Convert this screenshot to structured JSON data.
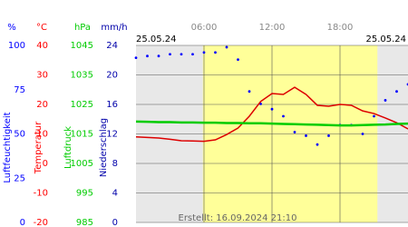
{
  "chart_data": {
    "type": "line",
    "dates": [
      "25.05.24",
      "25.05.24"
    ],
    "footer": "Erstellt: 16.09.2024 21:10",
    "xlim": [
      0,
      24
    ],
    "xticks": [
      {
        "value": 6,
        "label": "06:00"
      },
      {
        "value": 12,
        "label": "12:00"
      },
      {
        "value": 18,
        "label": "18:00"
      }
    ],
    "daylight": [
      5.9,
      21.3
    ],
    "daylight_color": "#ffff99",
    "grid": true,
    "axes": [
      {
        "unit": "%",
        "label": "Luftfeuchtigkeit",
        "color": "#0000ff",
        "lim": [
          0,
          100
        ],
        "ticks": [
          0,
          25,
          50,
          75,
          100
        ]
      },
      {
        "unit": "°C",
        "label": "Temperatur",
        "color": "#ff0000",
        "lim": [
          -20,
          40
        ],
        "ticks": [
          -20,
          -10,
          0,
          10,
          20,
          30,
          40
        ]
      },
      {
        "unit": "hPa",
        "label": "Luftdruck",
        "color": "#00cc00",
        "lim": [
          985,
          1045
        ],
        "ticks": [
          985,
          995,
          1005,
          1015,
          1025,
          1035,
          1045
        ]
      },
      {
        "unit": "mm/h",
        "label": "Niederschlag",
        "color": "#0000aa",
        "lim": [
          0,
          24
        ],
        "ticks": [
          0,
          4,
          8,
          12,
          16,
          20,
          24
        ]
      }
    ],
    "x": [
      0,
      1,
      2,
      3,
      4,
      5,
      6,
      7,
      8,
      9,
      10,
      11,
      12,
      13,
      14,
      15,
      16,
      17,
      18,
      19,
      20,
      21,
      22,
      23,
      24
    ],
    "series": [
      {
        "axis": 0,
        "style": "dots",
        "color": "#0000ff",
        "values": [
          93,
          94,
          94,
          95,
          95,
          95,
          96,
          96,
          99,
          92,
          74,
          67,
          64,
          60,
          51,
          49,
          44,
          49,
          55,
          55,
          50,
          60,
          69,
          74,
          78
        ]
      },
      {
        "axis": 1,
        "style": "line",
        "color": "#dd0000",
        "values": [
          9,
          8.8,
          8.6,
          8.2,
          7.7,
          7.6,
          7.5,
          8,
          9.8,
          12,
          16,
          21,
          23.7,
          23.4,
          25.8,
          23.4,
          19.7,
          19.4,
          20,
          19.7,
          17.8,
          16.9,
          15.4,
          13.8,
          11.7
        ]
      },
      {
        "axis": 2,
        "style": "thick",
        "color": "#00cc00",
        "values": [
          1019.2,
          1019.1,
          1019,
          1019,
          1018.9,
          1018.9,
          1018.8,
          1018.8,
          1018.7,
          1018.7,
          1018.6,
          1018.6,
          1018.5,
          1018.4,
          1018.3,
          1018.2,
          1018.1,
          1018,
          1017.9,
          1017.9,
          1018,
          1018.1,
          1018.2,
          1018.4,
          1018.5
        ]
      }
    ]
  }
}
